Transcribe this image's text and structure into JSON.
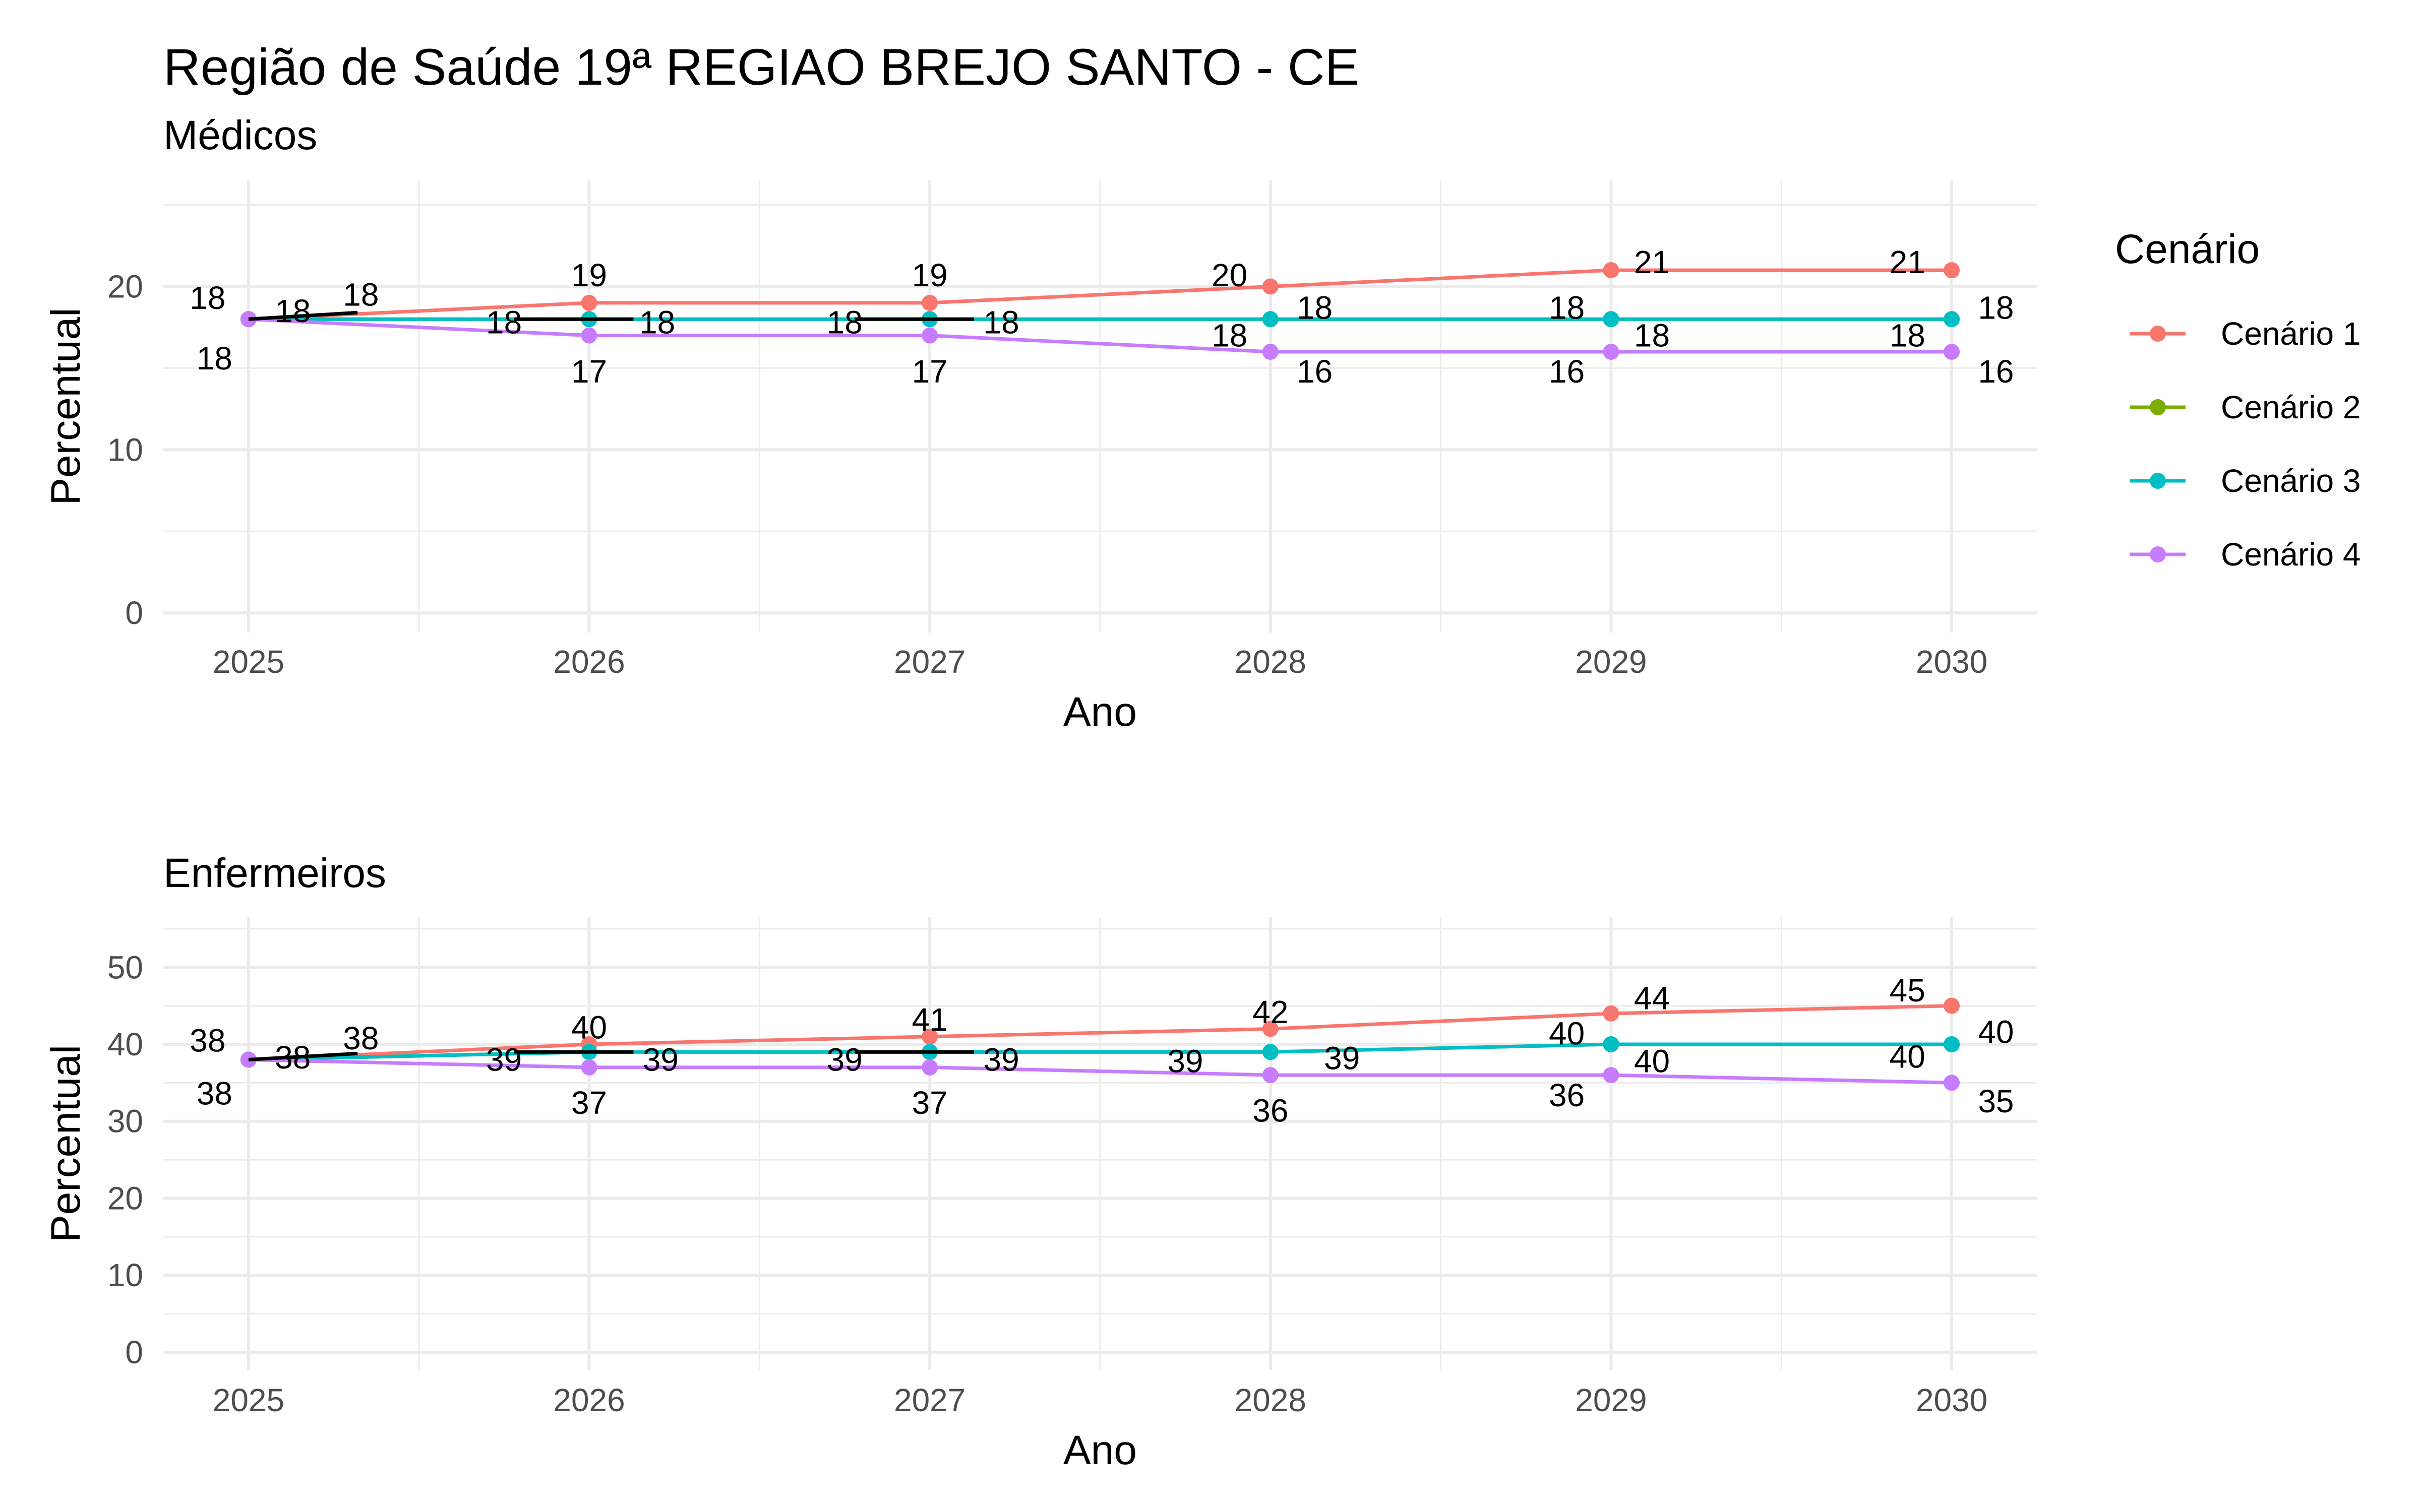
{
  "title": "Região de Saúde 19ª REGIAO BREJO SANTO - CE",
  "legend": {
    "title": "Cenário",
    "items": [
      {
        "label": "Cenário 1",
        "color": "#F8766D"
      },
      {
        "label": "Cenário 2",
        "color": "#7CAE00"
      },
      {
        "label": "Cenário 3",
        "color": "#00BFC4"
      },
      {
        "label": "Cenário 4",
        "color": "#C77CFF"
      }
    ]
  },
  "chart_data": [
    {
      "type": "line",
      "subtitle": "Médicos",
      "xlabel": "Ano",
      "ylabel": "Percentual",
      "x": [
        2025,
        2026,
        2027,
        2028,
        2029,
        2030
      ],
      "xlim": [
        2024.75,
        2030.25
      ],
      "ylim": [
        -1.2,
        26.5
      ],
      "yticks": [
        0,
        10,
        20
      ],
      "grid": true,
      "legend_position": "right",
      "series": [
        {
          "name": "Cenário 1",
          "color": "#F8766D",
          "values": [
            18,
            19,
            19,
            20,
            21,
            21
          ]
        },
        {
          "name": "Cenário 2",
          "color": "#7CAE00",
          "values": [
            18,
            18,
            18,
            18,
            18,
            18
          ]
        },
        {
          "name": "Cenário 3",
          "color": "#00BFC4",
          "values": [
            18,
            18,
            18,
            18,
            18,
            18
          ]
        },
        {
          "name": "Cenário 4",
          "color": "#C77CFF",
          "values": [
            18,
            17,
            17,
            16,
            16,
            16
          ]
        }
      ],
      "connector_segments": [
        {
          "from": [
            2025,
            18
          ],
          "to": [
            2025.32,
            18.4
          ]
        },
        {
          "from": [
            2025.78,
            18
          ],
          "to": [
            2026.13,
            18
          ]
        },
        {
          "from": [
            2026.78,
            18
          ],
          "to": [
            2027.13,
            18
          ]
        }
      ],
      "data_labels": [
        {
          "x": 2024.88,
          "y": 19.3,
          "text": "18"
        },
        {
          "x": 2025.13,
          "y": 18.5,
          "text": "18"
        },
        {
          "x": 2025.33,
          "y": 19.5,
          "text": "18"
        },
        {
          "x": 2024.9,
          "y": 15.6,
          "text": "18"
        },
        {
          "x": 2026.0,
          "y": 20.7,
          "text": "19"
        },
        {
          "x": 2025.75,
          "y": 17.8,
          "text": "18"
        },
        {
          "x": 2026.2,
          "y": 17.8,
          "text": "18"
        },
        {
          "x": 2026.0,
          "y": 14.8,
          "text": "17"
        },
        {
          "x": 2027.0,
          "y": 20.7,
          "text": "19"
        },
        {
          "x": 2026.75,
          "y": 17.8,
          "text": "18"
        },
        {
          "x": 2027.21,
          "y": 17.8,
          "text": "18"
        },
        {
          "x": 2027.0,
          "y": 14.8,
          "text": "17"
        },
        {
          "x": 2027.88,
          "y": 20.7,
          "text": "20"
        },
        {
          "x": 2028.13,
          "y": 18.7,
          "text": "18"
        },
        {
          "x": 2027.88,
          "y": 17.0,
          "text": "18"
        },
        {
          "x": 2028.13,
          "y": 14.8,
          "text": "16"
        },
        {
          "x": 2029.12,
          "y": 21.5,
          "text": "21"
        },
        {
          "x": 2028.87,
          "y": 18.7,
          "text": "18"
        },
        {
          "x": 2029.12,
          "y": 17.0,
          "text": "18"
        },
        {
          "x": 2028.87,
          "y": 14.8,
          "text": "16"
        },
        {
          "x": 2029.87,
          "y": 21.5,
          "text": "21"
        },
        {
          "x": 2030.13,
          "y": 18.7,
          "text": "18"
        },
        {
          "x": 2029.87,
          "y": 17.0,
          "text": "18"
        },
        {
          "x": 2030.13,
          "y": 14.8,
          "text": "16"
        }
      ]
    },
    {
      "type": "line",
      "subtitle": "Enfermeiros",
      "xlabel": "Ano",
      "ylabel": "Percentual",
      "x": [
        2025,
        2026,
        2027,
        2028,
        2029,
        2030
      ],
      "xlim": [
        2024.75,
        2030.25
      ],
      "ylim": [
        -2.3,
        56.5
      ],
      "yticks": [
        0,
        10,
        20,
        30,
        40,
        50
      ],
      "grid": true,
      "legend_position": "right",
      "series": [
        {
          "name": "Cenário 1",
          "color": "#F8766D",
          "values": [
            38,
            40,
            41,
            42,
            44,
            45
          ]
        },
        {
          "name": "Cenário 2",
          "color": "#7CAE00",
          "values": [
            38,
            39,
            39,
            39,
            40,
            40
          ]
        },
        {
          "name": "Cenário 3",
          "color": "#00BFC4",
          "values": [
            38,
            39,
            39,
            39,
            40,
            40
          ]
        },
        {
          "name": "Cenário 4",
          "color": "#C77CFF",
          "values": [
            38,
            37,
            37,
            36,
            36,
            35
          ]
        }
      ],
      "connector_segments": [
        {
          "from": [
            2025,
            38
          ],
          "to": [
            2025.32,
            38.8
          ]
        },
        {
          "from": [
            2025.78,
            39
          ],
          "to": [
            2026.13,
            39
          ]
        },
        {
          "from": [
            2026.78,
            39
          ],
          "to": [
            2027.13,
            39
          ]
        }
      ],
      "data_labels": [
        {
          "x": 2024.88,
          "y": 40.5,
          "text": "38"
        },
        {
          "x": 2025.13,
          "y": 38.3,
          "text": "38"
        },
        {
          "x": 2025.33,
          "y": 40.8,
          "text": "38"
        },
        {
          "x": 2024.9,
          "y": 33.6,
          "text": "38"
        },
        {
          "x": 2026.0,
          "y": 42.2,
          "text": "40"
        },
        {
          "x": 2025.75,
          "y": 38.0,
          "text": "39"
        },
        {
          "x": 2026.21,
          "y": 38.0,
          "text": "39"
        },
        {
          "x": 2026.0,
          "y": 32.4,
          "text": "37"
        },
        {
          "x": 2027.0,
          "y": 43.2,
          "text": "41"
        },
        {
          "x": 2026.75,
          "y": 38.0,
          "text": "39"
        },
        {
          "x": 2027.21,
          "y": 38.0,
          "text": "39"
        },
        {
          "x": 2027.0,
          "y": 32.4,
          "text": "37"
        },
        {
          "x": 2028.0,
          "y": 44.2,
          "text": "42"
        },
        {
          "x": 2027.75,
          "y": 37.8,
          "text": "39"
        },
        {
          "x": 2028.21,
          "y": 38.2,
          "text": "39"
        },
        {
          "x": 2028.0,
          "y": 31.4,
          "text": "36"
        },
        {
          "x": 2029.12,
          "y": 46.0,
          "text": "44"
        },
        {
          "x": 2028.87,
          "y": 41.4,
          "text": "40"
        },
        {
          "x": 2029.12,
          "y": 37.8,
          "text": "40"
        },
        {
          "x": 2028.87,
          "y": 33.4,
          "text": "36"
        },
        {
          "x": 2029.87,
          "y": 47.0,
          "text": "45"
        },
        {
          "x": 2030.13,
          "y": 41.6,
          "text": "40"
        },
        {
          "x": 2029.87,
          "y": 38.4,
          "text": "40"
        },
        {
          "x": 2030.13,
          "y": 32.6,
          "text": "35"
        }
      ]
    }
  ]
}
